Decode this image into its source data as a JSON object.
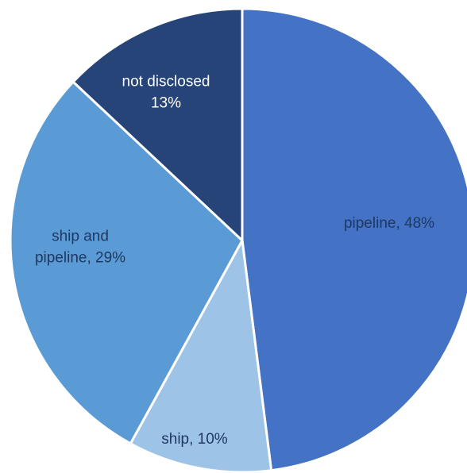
{
  "chart_data": {
    "type": "pie",
    "title": "",
    "unit": "%",
    "slices": [
      {
        "name": "pipeline",
        "value": 48,
        "color": "#4472C4",
        "label_color": "#1F3864",
        "label_lines": [
          "pipeline, 48%"
        ]
      },
      {
        "name": "ship",
        "value": 10,
        "color": "#9DC3E6",
        "label_color": "#1F3864",
        "label_lines": [
          "ship, 10%"
        ]
      },
      {
        "name": "ship and pipeline",
        "value": 29,
        "color": "#5B9BD5",
        "label_color": "#1F3864",
        "label_lines": [
          "ship and",
          "pipeline, 29%"
        ]
      },
      {
        "name": "not disclosed",
        "value": 13,
        "color": "#264478",
        "label_color": "#FFFFFF",
        "label_lines": [
          "not disclosed",
          "13%"
        ]
      }
    ],
    "start_angle": "12 o'clock",
    "direction": "clockwise",
    "legend": "none"
  }
}
